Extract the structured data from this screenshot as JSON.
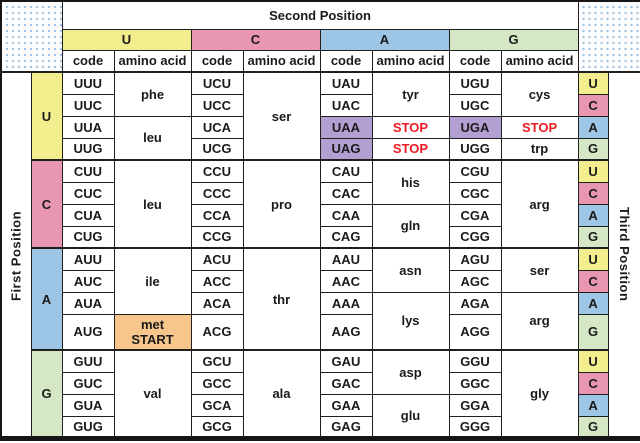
{
  "colors": {
    "base_U": "#f2ee8d",
    "base_C": "#e996b0",
    "base_A": "#9dc6e6",
    "base_G": "#d6e7c6",
    "stop_codon_bg": "#b1a0d1",
    "stop_text": "#ed1c24",
    "start_codon_bg": "#f6c68c",
    "grid_line": "#1f1f1f",
    "corner_dot": "#9ec4e4"
  },
  "chart_data": {
    "type": "table",
    "title": "Second Position",
    "left_axis_label": "First Position",
    "right_axis_label": "Third Position",
    "column_subheaders": {
      "code": "code",
      "amino": "amino acid"
    },
    "second_position_bases": [
      "U",
      "C",
      "A",
      "G"
    ],
    "third_position_bases": [
      "U",
      "C",
      "A",
      "G"
    ],
    "stop_codons": [
      "UAA",
      "UAG",
      "UGA"
    ],
    "start_codon": "AUG",
    "groups": [
      {
        "first_base": "U",
        "sections": [
          {
            "second_base": "U",
            "codons": [
              "UUU",
              "UUC",
              "UUA",
              "UUG"
            ],
            "aminos": [
              {
                "label": "phe",
                "span": 2
              },
              {
                "label": "leu",
                "span": 2
              }
            ]
          },
          {
            "second_base": "C",
            "codons": [
              "UCU",
              "UCC",
              "UCA",
              "UCG"
            ],
            "aminos": [
              {
                "label": "ser",
                "span": 4
              }
            ]
          },
          {
            "second_base": "A",
            "codons": [
              "UAU",
              "UAC",
              "UAA",
              "UAG"
            ],
            "aminos": [
              {
                "label": "tyr",
                "span": 2
              },
              {
                "label": "STOP",
                "span": 1,
                "style": "stop"
              },
              {
                "label": "STOP",
                "span": 1,
                "style": "stop"
              }
            ]
          },
          {
            "second_base": "G",
            "codons": [
              "UGU",
              "UGC",
              "UGA",
              "UGG"
            ],
            "aminos": [
              {
                "label": "cys",
                "span": 2
              },
              {
                "label": "STOP",
                "span": 1,
                "style": "stop"
              },
              {
                "label": "trp",
                "span": 1
              }
            ]
          }
        ]
      },
      {
        "first_base": "C",
        "sections": [
          {
            "second_base": "U",
            "codons": [
              "CUU",
              "CUC",
              "CUA",
              "CUG"
            ],
            "aminos": [
              {
                "label": "leu",
                "span": 4
              }
            ]
          },
          {
            "second_base": "C",
            "codons": [
              "CCU",
              "CCC",
              "CCA",
              "CCG"
            ],
            "aminos": [
              {
                "label": "pro",
                "span": 4
              }
            ]
          },
          {
            "second_base": "A",
            "codons": [
              "CAU",
              "CAC",
              "CAA",
              "CAG"
            ],
            "aminos": [
              {
                "label": "his",
                "span": 2
              },
              {
                "label": "gln",
                "span": 2
              }
            ]
          },
          {
            "second_base": "G",
            "codons": [
              "CGU",
              "CGC",
              "CGA",
              "CGG"
            ],
            "aminos": [
              {
                "label": "arg",
                "span": 4
              }
            ]
          }
        ]
      },
      {
        "first_base": "A",
        "sections": [
          {
            "second_base": "U",
            "codons": [
              "AUU",
              "AUC",
              "AUA",
              "AUG"
            ],
            "aminos": [
              {
                "label": "ile",
                "span": 3
              },
              {
                "label": "met START",
                "lines": [
                  "met",
                  "START"
                ],
                "span": 1,
                "style": "start"
              }
            ]
          },
          {
            "second_base": "C",
            "codons": [
              "ACU",
              "ACC",
              "ACA",
              "ACG"
            ],
            "aminos": [
              {
                "label": "thr",
                "span": 4
              }
            ]
          },
          {
            "second_base": "A",
            "codons": [
              "AAU",
              "AAC",
              "AAA",
              "AAG"
            ],
            "aminos": [
              {
                "label": "asn",
                "span": 2
              },
              {
                "label": "lys",
                "span": 2
              }
            ]
          },
          {
            "second_base": "G",
            "codons": [
              "AGU",
              "AGC",
              "AGA",
              "AGG"
            ],
            "aminos": [
              {
                "label": "ser",
                "span": 2
              },
              {
                "label": "arg",
                "span": 2
              }
            ]
          }
        ]
      },
      {
        "first_base": "G",
        "sections": [
          {
            "second_base": "U",
            "codons": [
              "GUU",
              "GUC",
              "GUA",
              "GUG"
            ],
            "aminos": [
              {
                "label": "val",
                "span": 4
              }
            ]
          },
          {
            "second_base": "C",
            "codons": [
              "GCU",
              "GCC",
              "GCA",
              "GCG"
            ],
            "aminos": [
              {
                "label": "ala",
                "span": 4
              }
            ]
          },
          {
            "second_base": "A",
            "codons": [
              "GAU",
              "GAC",
              "GAA",
              "GAG"
            ],
            "aminos": [
              {
                "label": "asp",
                "span": 2
              },
              {
                "label": "glu",
                "span": 2
              }
            ]
          },
          {
            "second_base": "G",
            "codons": [
              "GGU",
              "GGC",
              "GGA",
              "GGG"
            ],
            "aminos": [
              {
                "label": "gly",
                "span": 4
              }
            ]
          }
        ]
      }
    ]
  }
}
